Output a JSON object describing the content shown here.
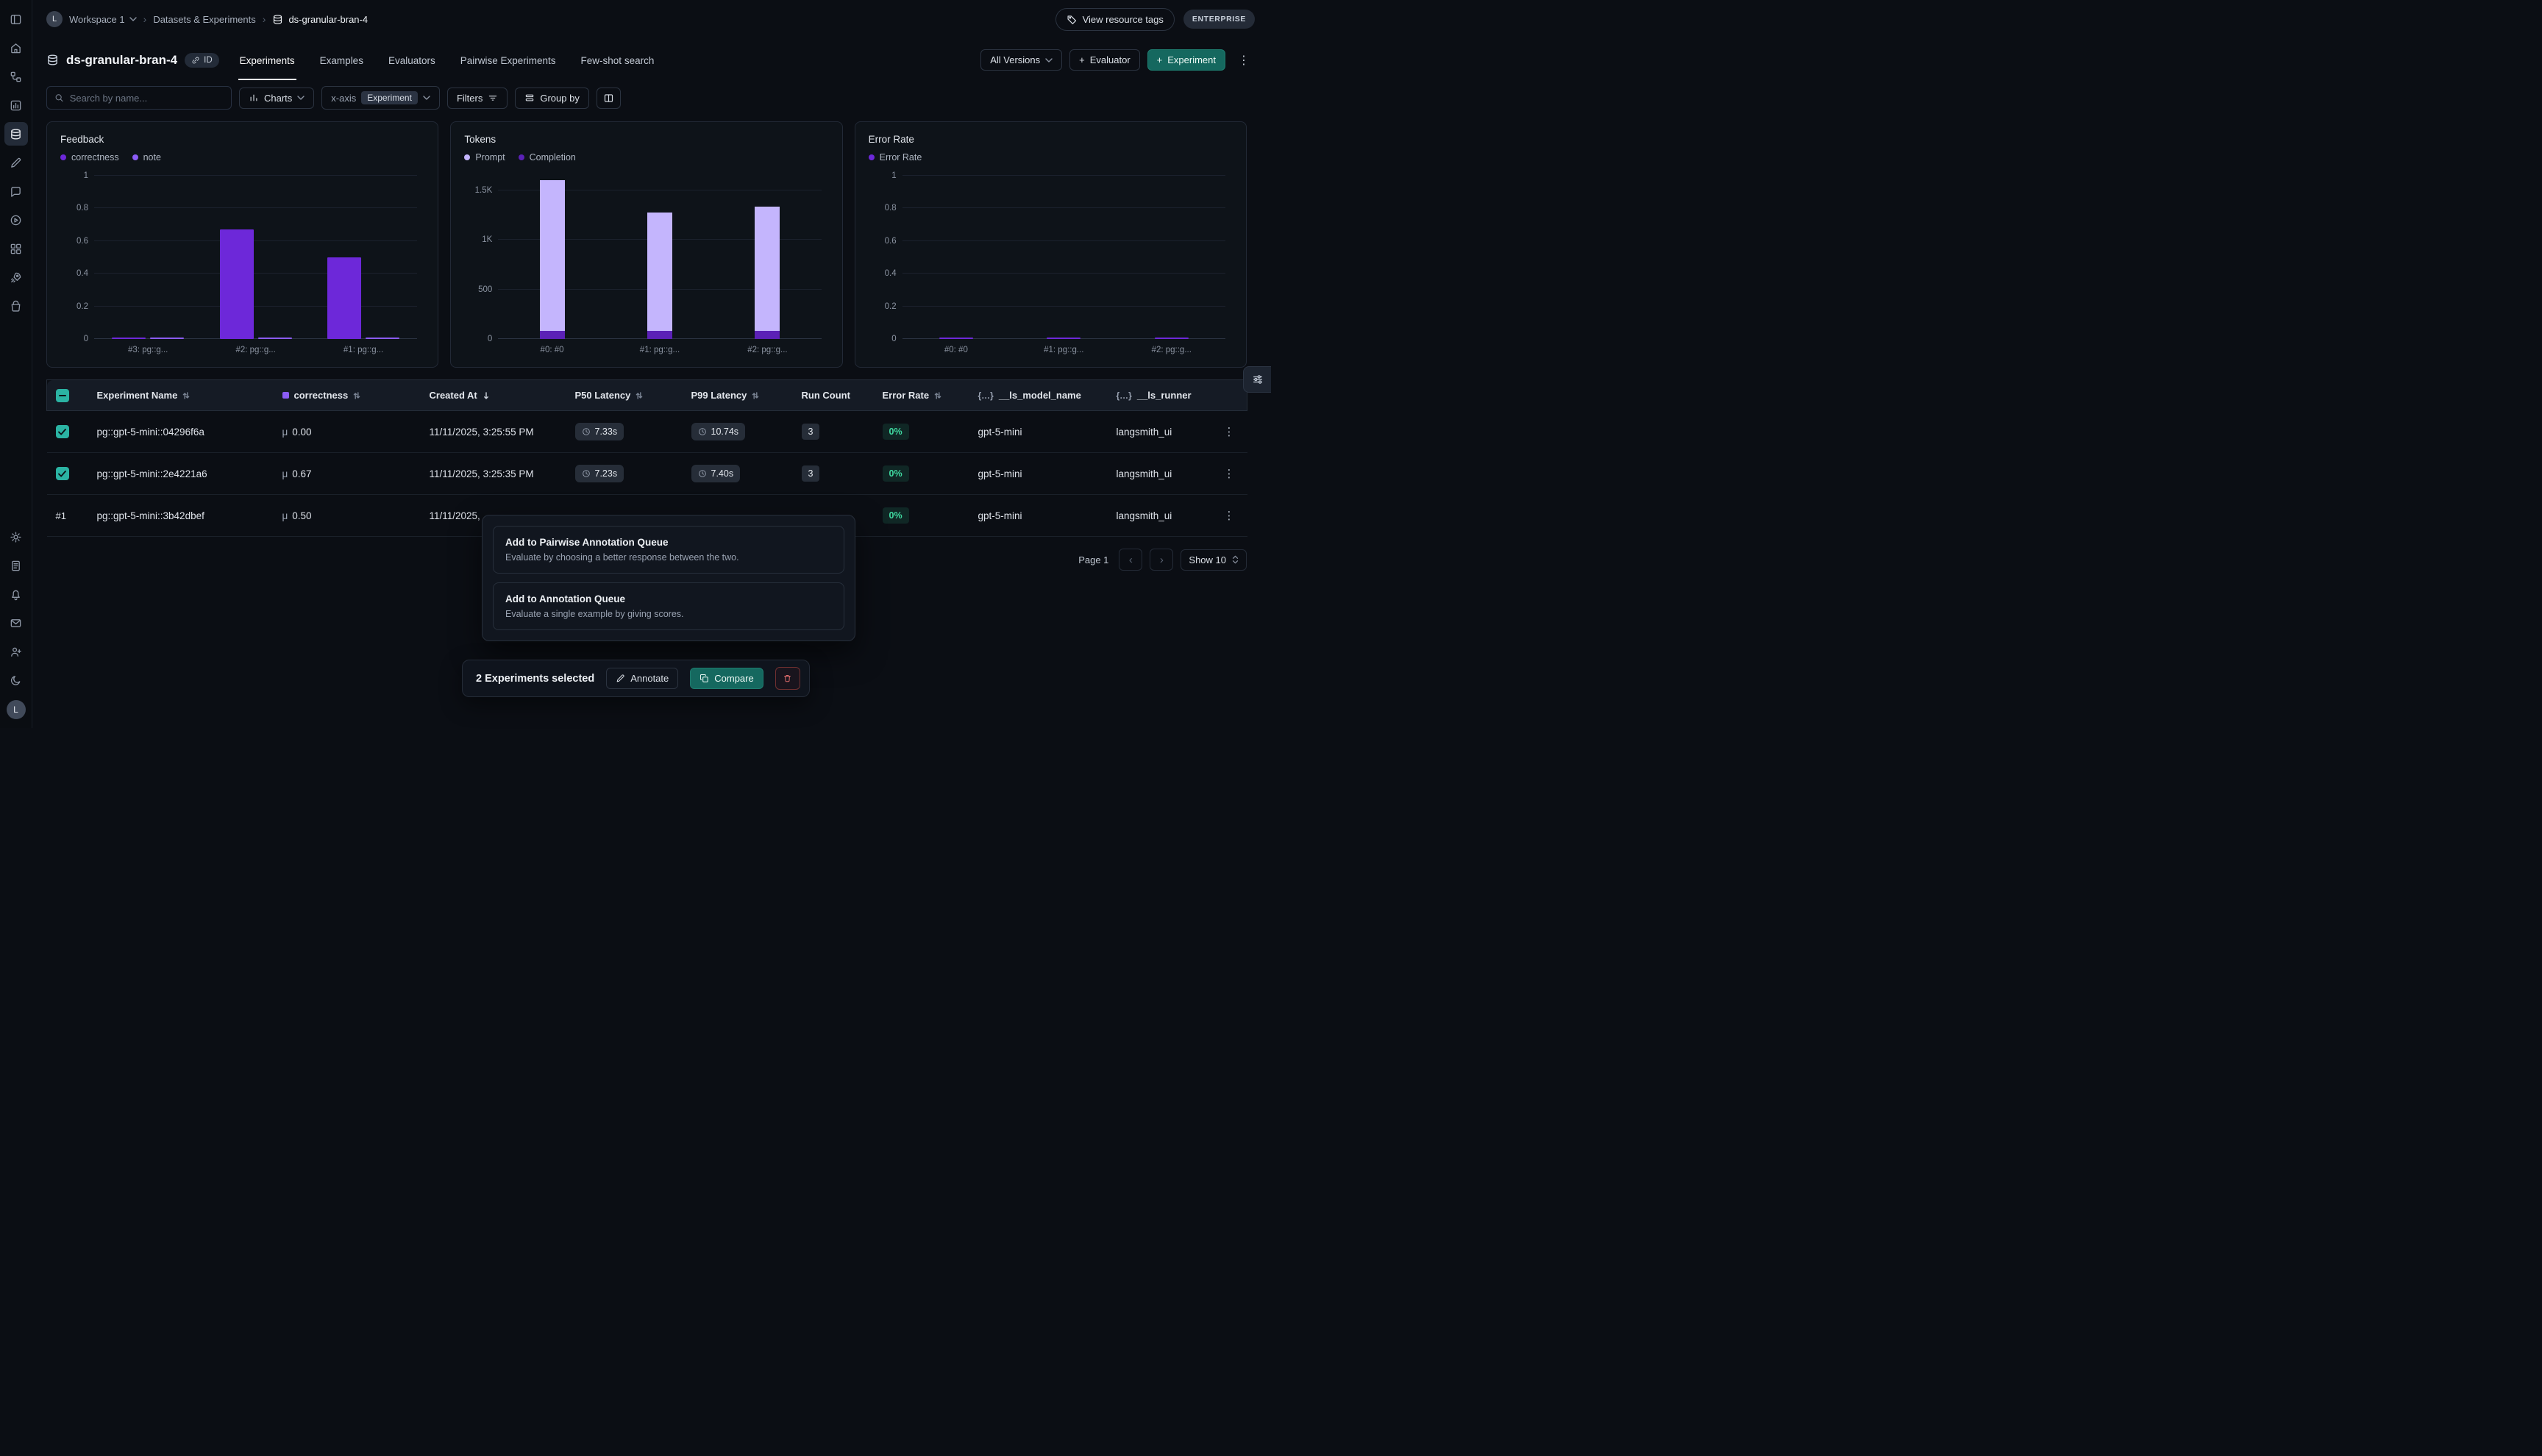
{
  "user": {
    "initial": "L"
  },
  "icons": {
    "kebab": "⋮",
    "plus": "+",
    "breadcrumb_separator": "›",
    "page_prev": "‹",
    "page_next": "›"
  },
  "breadcrumb": {
    "workspace_initial": "L",
    "workspace": "Workspace 1",
    "section": "Datasets & Experiments",
    "current": "ds-granular-bran-4"
  },
  "topbar": {
    "view_resource_tags": "View resource tags",
    "plan_badge": "ENTERPRISE"
  },
  "header": {
    "title": "ds-granular-bran-4",
    "id_chip": "ID",
    "tabs": [
      {
        "label": "Experiments",
        "active": true
      },
      {
        "label": "Examples",
        "active": false
      },
      {
        "label": "Evaluators",
        "active": false
      },
      {
        "label": "Pairwise Experiments",
        "active": false
      },
      {
        "label": "Few-shot search",
        "active": false
      }
    ],
    "versions_dropdown": "All Versions",
    "evaluator_button": "Evaluator",
    "experiment_button": "Experiment"
  },
  "toolbar": {
    "search_placeholder": "Search by name...",
    "charts_button": "Charts",
    "xaxis_label": "x-axis",
    "xaxis_value": "Experiment",
    "filters_button": "Filters",
    "group_by_button": "Group by"
  },
  "charts": [
    {
      "title": "Feedback",
      "legend": [
        {
          "label": "correctness"
        },
        {
          "label": "note"
        }
      ],
      "chart_data": {
        "type": "bar",
        "categories": [
          "#3: pg::g...",
          "#2: pg::g...",
          "#1: pg::g..."
        ],
        "series": [
          {
            "name": "correctness",
            "color": "#6d28d9",
            "values": [
              0,
              0.67,
              0.5
            ]
          },
          {
            "name": "note",
            "color": "#8b5cf6",
            "values": [
              0,
              0,
              0
            ]
          }
        ],
        "stacked": false,
        "ylim": [
          0,
          1
        ],
        "yticks": [
          [
            0,
            "0"
          ],
          [
            0.2,
            "0.2"
          ],
          [
            0.4,
            "0.4"
          ],
          [
            0.6,
            "0.6"
          ],
          [
            0.8,
            "0.8"
          ],
          [
            1,
            "1"
          ]
        ]
      }
    },
    {
      "title": "Tokens",
      "legend": [
        {
          "label": "Prompt"
        },
        {
          "label": "Completion"
        }
      ],
      "chart_data": {
        "type": "bar",
        "categories": [
          "#0: #0",
          "#1: pg::g...",
          "#2: pg::g..."
        ],
        "series": [
          {
            "name": "Prompt",
            "color": "#c4b5fd",
            "values": [
              1520,
              1200,
              1260
            ]
          },
          {
            "name": "Completion",
            "color": "#5b21b6",
            "values": [
              85,
              80,
              80
            ]
          }
        ],
        "stacked": true,
        "ylim": [
          0,
          1650
        ],
        "yticks": [
          [
            0,
            "0"
          ],
          [
            500,
            "500"
          ],
          [
            1000,
            "1K"
          ],
          [
            1500,
            "1.5K"
          ]
        ]
      }
    },
    {
      "title": "Error Rate",
      "legend": [
        {
          "label": "Error Rate"
        }
      ],
      "chart_data": {
        "type": "bar",
        "categories": [
          "#0: #0",
          "#1: pg::g...",
          "#2: pg::g..."
        ],
        "series": [
          {
            "name": "Error Rate",
            "color": "#6d28d9",
            "values": [
              0,
              0,
              0
            ]
          }
        ],
        "stacked": false,
        "ylim": [
          0,
          1
        ],
        "yticks": [
          [
            0,
            "0"
          ],
          [
            0.2,
            "0.2"
          ],
          [
            0.4,
            "0.4"
          ],
          [
            0.6,
            "0.6"
          ],
          [
            0.8,
            "0.8"
          ],
          [
            1,
            "1"
          ]
        ]
      }
    }
  ],
  "table": {
    "mu": "μ",
    "columns": {
      "experiment_name": "Experiment Name",
      "correctness": "correctness",
      "created_at": "Created At",
      "p50": "P50 Latency",
      "p99": "P99 Latency",
      "run_count": "Run Count",
      "error_rate": "Error Rate",
      "model_name": "__ls_model_name",
      "runner": "__ls_runner",
      "braces": "{…}"
    },
    "rows": [
      {
        "checked": true,
        "name": "pg::gpt-5-mini::04296f6a",
        "correctness": "0.00",
        "created_at": "11/11/2025, 3:25:55 PM",
        "p50": "7.33s",
        "p99": "10.74s",
        "run_count": "3",
        "error_rate": "0%",
        "model_name": "gpt-5-mini",
        "runner": "langsmith_ui"
      },
      {
        "checked": true,
        "name": "pg::gpt-5-mini::2e4221a6",
        "correctness": "0.67",
        "created_at": "11/11/2025, 3:25:35 PM",
        "p50": "7.23s",
        "p99": "7.40s",
        "run_count": "3",
        "error_rate": "0%",
        "model_name": "gpt-5-mini",
        "runner": "langsmith_ui"
      },
      {
        "checked": false,
        "rank": "#1",
        "name": "pg::gpt-5-mini::3b42dbef",
        "correctness": "0.50",
        "created_at": "11/11/2025,",
        "error_rate": "0%",
        "model_name": "gpt-5-mini",
        "runner": "langsmith_ui"
      }
    ]
  },
  "popup": {
    "items": [
      {
        "title": "Add to Pairwise Annotation Queue",
        "description": "Evaluate by choosing a better response between the two."
      },
      {
        "title": "Add to Annotation Queue",
        "description": "Evaluate a single example by giving scores."
      }
    ]
  },
  "selection_bar": {
    "text": "2 Experiments selected",
    "annotate": "Annotate",
    "compare": "Compare"
  },
  "pagination": {
    "page": "Page 1",
    "show": "Show 10"
  },
  "colors": {
    "accent_teal": "#15685f",
    "purple": "#6d28d9",
    "light_purple": "#c4b5fd",
    "success_green": "#3fd9a0"
  }
}
